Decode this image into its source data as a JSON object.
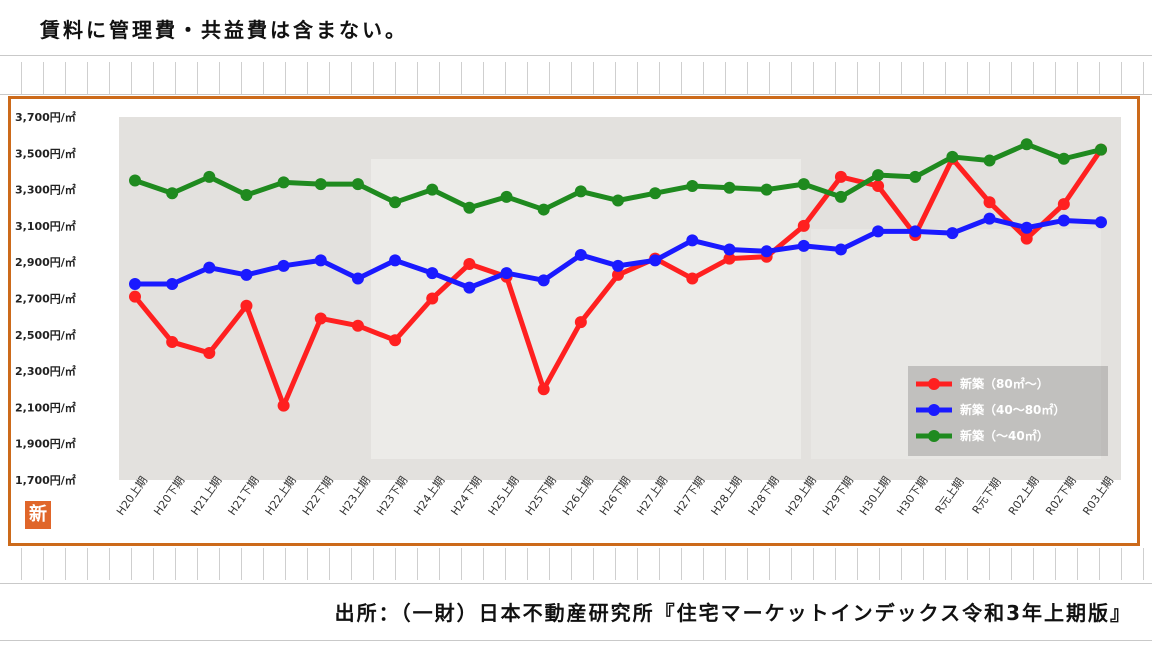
{
  "header": {
    "note": "賃料に管理費・共益費は含まない。"
  },
  "footer": {
    "source": "出所：（一財）日本不動産研究所『住宅マーケットインデックス令和3年上期版』"
  },
  "badge": {
    "label": "新"
  },
  "colors": {
    "frame": "#cc6a1a",
    "red": "#ff2020",
    "blue": "#1a1aff",
    "green": "#1f8a1f",
    "plot_bg": "#e3e1de"
  },
  "chart_data": {
    "type": "line",
    "title": "",
    "xlabel": "",
    "ylabel": "",
    "ylim": [
      1700,
      3700
    ],
    "yticks": [
      1700,
      1900,
      2100,
      2300,
      2500,
      2700,
      2900,
      3100,
      3300,
      3500,
      3700
    ],
    "ytick_labels": [
      "1,700円/㎡",
      "1,900円/㎡",
      "2,100円/㎡",
      "2,300円/㎡",
      "2,500円/㎡",
      "2,700円/㎡",
      "2,900円/㎡",
      "3,100円/㎡",
      "3,300円/㎡",
      "3,500円/㎡",
      "3,700円/㎡"
    ],
    "categories": [
      "H20上期",
      "H20下期",
      "H21上期",
      "H21下期",
      "H22上期",
      "H22下期",
      "H23上期",
      "H23下期",
      "H24上期",
      "H24下期",
      "H25上期",
      "H25下期",
      "H26上期",
      "H26下期",
      "H27上期",
      "H27下期",
      "H28上期",
      "H28下期",
      "H29上期",
      "H29下期",
      "H30上期",
      "H30下期",
      "R元上期",
      "R元下期",
      "R02上期",
      "R02下期",
      "R03上期"
    ],
    "legend_position": "bottom-right",
    "series": [
      {
        "name": "新築（80㎡～）",
        "color": "#ff2020",
        "values": [
          2710,
          2460,
          2400,
          2660,
          2110,
          2590,
          2550,
          2470,
          2700,
          2890,
          2820,
          2200,
          2570,
          2830,
          2920,
          2810,
          2920,
          2930,
          3100,
          3370,
          3320,
          3050,
          3470,
          3230,
          3030,
          3220,
          3520
        ]
      },
      {
        "name": "新築（40～80㎡）",
        "color": "#1a1aff",
        "values": [
          2780,
          2780,
          2870,
          2830,
          2880,
          2910,
          2810,
          2910,
          2840,
          2760,
          2840,
          2800,
          2940,
          2880,
          2910,
          3020,
          2970,
          2960,
          2990,
          2970,
          3070,
          3070,
          3060,
          3140,
          3090,
          3130,
          3120
        ]
      },
      {
        "name": "新築（～40㎡）",
        "color": "#1f8a1f",
        "values": [
          3350,
          3280,
          3370,
          3270,
          3340,
          3330,
          3330,
          3230,
          3300,
          3200,
          3260,
          3190,
          3290,
          3240,
          3280,
          3320,
          3310,
          3300,
          3330,
          3260,
          3380,
          3370,
          3480,
          3460,
          3550,
          3470,
          3520
        ]
      }
    ]
  }
}
